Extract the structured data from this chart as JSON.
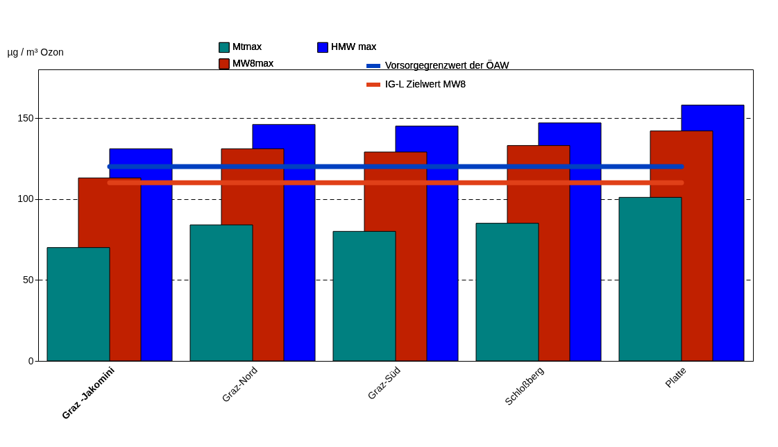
{
  "chart_data": {
    "type": "bar",
    "ylabel": "µg / m³ Ozon",
    "categories": [
      "Graz -Jakomini",
      "Graz-Nord",
      "Graz-Süd",
      "Schloßberg",
      "Platte"
    ],
    "series": [
      {
        "name": "Mtmax",
        "color": "#008080",
        "values": [
          70,
          84,
          80,
          85,
          101
        ]
      },
      {
        "name": "MW8max",
        "color": "#c02000",
        "values": [
          113,
          131,
          129,
          133,
          142
        ]
      },
      {
        "name": "HMW max",
        "color": "#0000ff",
        "values": [
          131,
          146,
          145,
          147,
          158
        ]
      },
      {
        "name": "Vorsorgegrenzwert der ÖAW",
        "type": "line",
        "color": "#0040c0",
        "values": [
          120,
          120,
          120,
          120,
          120
        ]
      },
      {
        "name": "IG-L Zielwert MW8",
        "type": "line",
        "color": "#e04018",
        "values": [
          110,
          110,
          110,
          110,
          110
        ]
      }
    ],
    "ylim": [
      0,
      180
    ],
    "yticks": [
      0,
      50,
      100,
      150
    ],
    "grid": "y",
    "legend": "top"
  }
}
